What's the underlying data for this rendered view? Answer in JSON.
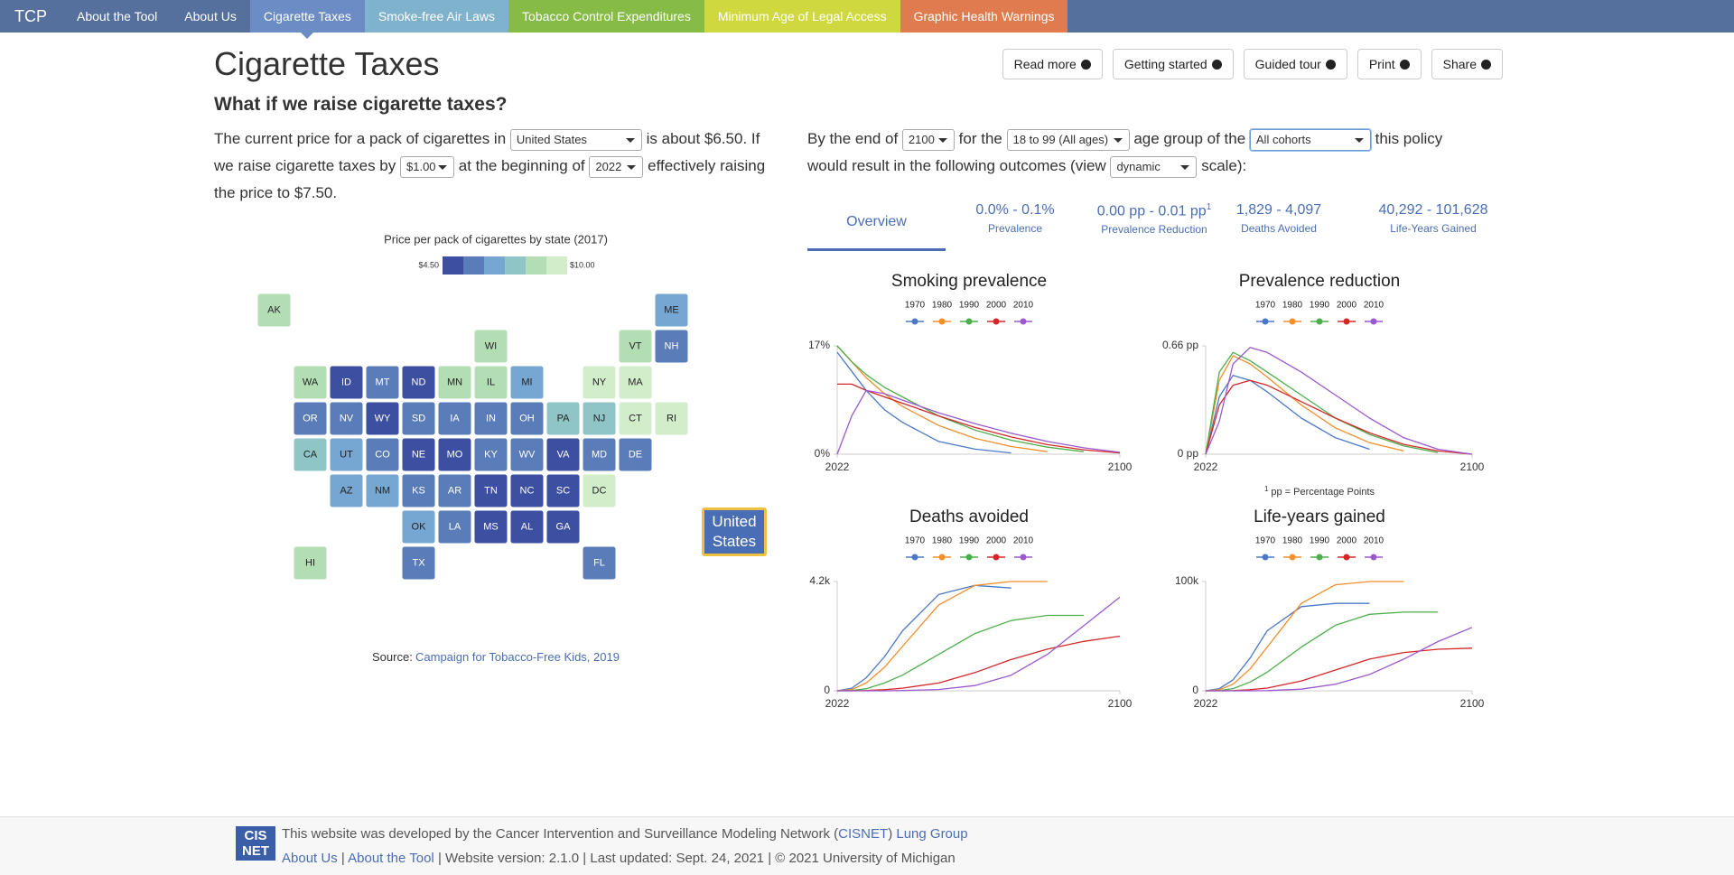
{
  "nav": {
    "brand": "TCP",
    "items": [
      {
        "label": "About the Tool",
        "color": "#56709e"
      },
      {
        "label": "About Us",
        "color": "#56709e"
      },
      {
        "label": "Cigarette Taxes",
        "color": "#6b8cc4"
      },
      {
        "label": "Smoke-free Air Laws",
        "color": "#7fb2cc"
      },
      {
        "label": "Tobacco Control Expenditures",
        "color": "#86bc45"
      },
      {
        "label": "Minimum Age of Legal Access",
        "color": "#cfd83e"
      },
      {
        "label": "Graphic Health Warnings",
        "color": "#e07b4f"
      }
    ]
  },
  "header": {
    "title": "Cigarette Taxes",
    "subtitle": "What if we raise cigarette taxes?",
    "buttons": [
      "Read more",
      "Getting started",
      "Guided tour",
      "Print",
      "Share"
    ]
  },
  "form": {
    "left": [
      "The current price for a pack of cigarettes in",
      "is about $6.50",
      ". If we raise cigarette taxes by",
      "at the beginning of",
      "effectively raising the price to $7.50."
    ],
    "location": "United States",
    "tax": "$1.00",
    "start_year": "2022",
    "right": [
      "By the end of",
      "for the",
      "age group of the",
      "this policy would result in the following outcomes (view",
      "scale):"
    ],
    "end_year": "2100",
    "age_group": "18 to 99 (All ages)",
    "cohorts": "All cohorts",
    "scale": "dynamic"
  },
  "outcomes": {
    "active": "Overview",
    "tabs": [
      {
        "value": "0.0% - 0.1%",
        "label": "Prevalence"
      },
      {
        "value": "0.00 pp - 0.01 pp",
        "sup": "1",
        "label": "Prevalence Reduction"
      },
      {
        "value": "1,829 - 4,097",
        "label": "Deaths Avoided"
      },
      {
        "value": "40,292 - 101,628",
        "label": "Life-Years Gained"
      }
    ],
    "footnote": {
      "marker": "1",
      "text": "pp = Percentage Points"
    }
  },
  "chart_data": [
    {
      "type": "line",
      "title": "Smoking prevalence",
      "x": [
        2022,
        2026,
        2030,
        2035,
        2040,
        2050,
        2060,
        2070,
        2080,
        2090,
        2100
      ],
      "xlim": [
        2022,
        2100
      ],
      "xticks": [
        2022,
        2100
      ],
      "ylim": [
        0,
        17
      ],
      "yticks": [
        {
          "value": 0,
          "label": "0%"
        },
        {
          "value": 17,
          "label": "17%"
        }
      ],
      "series": [
        {
          "name": "1970",
          "color": "#4a78c8",
          "values": [
            16,
            13,
            10,
            7,
            5,
            2,
            0.8,
            0.2,
            null,
            null,
            null
          ]
        },
        {
          "name": "1980",
          "color": "#f28e2b",
          "values": [
            17,
            14.5,
            12,
            9.5,
            7.5,
            4.5,
            2.5,
            1.2,
            0.4,
            null,
            null
          ]
        },
        {
          "name": "1990",
          "color": "#4daf4a",
          "values": [
            17,
            14.5,
            12.5,
            10.5,
            9,
            6,
            3.8,
            2.2,
            1.1,
            0.4,
            null
          ]
        },
        {
          "name": "2000",
          "color": "#d62728",
          "values": [
            11,
            11,
            10,
            9,
            8,
            6,
            4.2,
            2.7,
            1.5,
            0.7,
            0.2
          ]
        },
        {
          "name": "2010",
          "color": "#9b59d0",
          "values": [
            0,
            6,
            10,
            9.5,
            8.5,
            6.5,
            4.8,
            3.3,
            2,
            1,
            0.3
          ]
        }
      ]
    },
    {
      "type": "line",
      "title": "Prevalence reduction",
      "x": [
        2022,
        2026,
        2030,
        2035,
        2040,
        2050,
        2060,
        2070,
        2080,
        2090,
        2100
      ],
      "xlim": [
        2022,
        2100
      ],
      "xticks": [
        2022,
        2100
      ],
      "ylim": [
        0,
        0.66
      ],
      "yticks": [
        {
          "value": 0,
          "label": "0 pp"
        },
        {
          "value": 0.66,
          "label": "0.66 pp"
        }
      ],
      "series": [
        {
          "name": "1970",
          "color": "#4a78c8",
          "values": [
            0,
            0.35,
            0.48,
            0.45,
            0.38,
            0.22,
            0.1,
            0.03,
            null,
            null,
            null
          ]
        },
        {
          "name": "1980",
          "color": "#f28e2b",
          "values": [
            0,
            0.45,
            0.6,
            0.55,
            0.47,
            0.3,
            0.16,
            0.07,
            0.02,
            null,
            null
          ]
        },
        {
          "name": "1990",
          "color": "#4daf4a",
          "values": [
            0,
            0.5,
            0.62,
            0.57,
            0.5,
            0.36,
            0.22,
            0.12,
            0.05,
            0.01,
            null
          ]
        },
        {
          "name": "2000",
          "color": "#d62728",
          "values": [
            0,
            0.3,
            0.42,
            0.45,
            0.42,
            0.32,
            0.22,
            0.13,
            0.06,
            0.02,
            0
          ]
        },
        {
          "name": "2010",
          "color": "#9b59d0",
          "values": [
            0,
            0.2,
            0.55,
            0.65,
            0.62,
            0.5,
            0.36,
            0.22,
            0.1,
            0.03,
            0
          ]
        }
      ]
    },
    {
      "type": "line",
      "title": "Deaths avoided",
      "x": [
        2022,
        2026,
        2030,
        2035,
        2040,
        2050,
        2060,
        2070,
        2080,
        2090,
        2100
      ],
      "xlim": [
        2022,
        2100
      ],
      "xticks": [
        2022,
        2100
      ],
      "ylim": [
        0,
        4200
      ],
      "yticks": [
        0,
        {
          "value": 4200,
          "label": "4.2k"
        }
      ],
      "series": [
        {
          "name": "1970",
          "color": "#4a78c8",
          "values": [
            0,
            100,
            500,
            1300,
            2300,
            3700,
            4050,
            3950,
            null,
            null,
            null
          ]
        },
        {
          "name": "1980",
          "color": "#f28e2b",
          "values": [
            0,
            50,
            300,
            900,
            1700,
            3300,
            4050,
            4200,
            4200,
            null,
            null
          ]
        },
        {
          "name": "1990",
          "color": "#4daf4a",
          "values": [
            0,
            10,
            80,
            300,
            600,
            1400,
            2200,
            2700,
            2900,
            2900,
            null
          ]
        },
        {
          "name": "2000",
          "color": "#d62728",
          "values": [
            0,
            0,
            10,
            40,
            100,
            300,
            700,
            1200,
            1600,
            1900,
            2100
          ]
        },
        {
          "name": "2010",
          "color": "#9b59d0",
          "values": [
            0,
            0,
            0,
            0,
            10,
            50,
            200,
            600,
            1400,
            2500,
            3600
          ]
        }
      ]
    },
    {
      "type": "line",
      "title": "Life-years gained",
      "x": [
        2022,
        2026,
        2030,
        2035,
        2040,
        2050,
        2060,
        2070,
        2080,
        2090,
        2100
      ],
      "xlim": [
        2022,
        2100
      ],
      "xticks": [
        2022,
        2100
      ],
      "ylim": [
        0,
        100000
      ],
      "yticks": [
        0,
        {
          "value": 100000,
          "label": "100k"
        }
      ],
      "series": [
        {
          "name": "1970",
          "color": "#4a78c8",
          "values": [
            0,
            2000,
            10000,
            30000,
            55000,
            77000,
            80000,
            80000,
            null,
            null,
            null
          ]
        },
        {
          "name": "1980",
          "color": "#f28e2b",
          "values": [
            0,
            1000,
            6000,
            20000,
            40000,
            80000,
            97000,
            100000,
            100000,
            null,
            null
          ]
        },
        {
          "name": "1990",
          "color": "#4daf4a",
          "values": [
            0,
            200,
            2000,
            8000,
            17000,
            40000,
            60000,
            70000,
            72000,
            72000,
            null
          ]
        },
        {
          "name": "2000",
          "color": "#d62728",
          "values": [
            0,
            0,
            200,
            1000,
            2500,
            9000,
            19000,
            29000,
            35000,
            38000,
            39000
          ]
        },
        {
          "name": "2010",
          "color": "#9b59d0",
          "values": [
            0,
            0,
            0,
            0,
            200,
            1500,
            6000,
            15000,
            29000,
            45000,
            58000
          ]
        }
      ]
    }
  ],
  "map": {
    "title": "Price per pack of cigarettes by state (2017)",
    "legend_min": "$4.50",
    "legend_max": "$10.00",
    "legend_colors": [
      "#3c4fa1",
      "#5a7dba",
      "#76a6d2",
      "#8fc5c7",
      "#b3deb4",
      "#d2edc9"
    ],
    "selected": "United States",
    "source_label": "Source:",
    "source_link": "Campaign for Tobacco-Free Kids, 2019",
    "states": [
      {
        "label": "AK",
        "color": "#b3deb4"
      },
      {
        "label": "ME",
        "color": "#76a6d2"
      },
      {
        "label": "WI",
        "color": "#b3deb4"
      },
      {
        "label": "VT",
        "color": "#b3deb4"
      },
      {
        "label": "NH",
        "color": "#5a7dba"
      },
      {
        "label": "WA",
        "color": "#b3deb4"
      },
      {
        "label": "ID",
        "color": "#3c4fa1"
      },
      {
        "label": "MT",
        "color": "#5a7dba"
      },
      {
        "label": "ND",
        "color": "#3c4fa1"
      },
      {
        "label": "MN",
        "color": "#b3deb4"
      },
      {
        "label": "IL",
        "color": "#b3deb4"
      },
      {
        "label": "MI",
        "color": "#76a6d2"
      },
      {
        "label": "NY",
        "color": "#d2edc9"
      },
      {
        "label": "MA",
        "color": "#d2edc9"
      },
      {
        "label": "OR",
        "color": "#5a7dba"
      },
      {
        "label": "NV",
        "color": "#5a7dba"
      },
      {
        "label": "WY",
        "color": "#3c4fa1"
      },
      {
        "label": "SD",
        "color": "#5a7dba"
      },
      {
        "label": "IA",
        "color": "#5a7dba"
      },
      {
        "label": "IN",
        "color": "#5a7dba"
      },
      {
        "label": "OH",
        "color": "#5a7dba"
      },
      {
        "label": "PA",
        "color": "#8fc5c7"
      },
      {
        "label": "NJ",
        "color": "#8fc5c7"
      },
      {
        "label": "CT",
        "color": "#d2edc9"
      },
      {
        "label": "RI",
        "color": "#d2edc9"
      },
      {
        "label": "CA",
        "color": "#8fc5c7"
      },
      {
        "label": "UT",
        "color": "#76a6d2"
      },
      {
        "label": "CO",
        "color": "#5a7dba"
      },
      {
        "label": "NE",
        "color": "#3c4fa1"
      },
      {
        "label": "MO",
        "color": "#3c4fa1"
      },
      {
        "label": "KY",
        "color": "#5a7dba"
      },
      {
        "label": "WV",
        "color": "#5a7dba"
      },
      {
        "label": "VA",
        "color": "#3c4fa1"
      },
      {
        "label": "MD",
        "color": "#5a7dba"
      },
      {
        "label": "DE",
        "color": "#5a7dba"
      },
      {
        "label": "AZ",
        "color": "#76a6d2"
      },
      {
        "label": "NM",
        "color": "#76a6d2"
      },
      {
        "label": "KS",
        "color": "#5a7dba"
      },
      {
        "label": "AR",
        "color": "#5a7dba"
      },
      {
        "label": "TN",
        "color": "#3c4fa1"
      },
      {
        "label": "NC",
        "color": "#3c4fa1"
      },
      {
        "label": "SC",
        "color": "#3c4fa1"
      },
      {
        "label": "DC",
        "color": "#d2edc9"
      },
      {
        "label": "OK",
        "color": "#76a6d2"
      },
      {
        "label": "LA",
        "color": "#5a7dba"
      },
      {
        "label": "MS",
        "color": "#3c4fa1"
      },
      {
        "label": "AL",
        "color": "#3c4fa1"
      },
      {
        "label": "GA",
        "color": "#3c4fa1"
      },
      {
        "label": "HI",
        "color": "#b3deb4"
      },
      {
        "label": "TX",
        "color": "#5a7dba"
      },
      {
        "label": "FL",
        "color": "#5a7dba"
      }
    ]
  },
  "footer": {
    "logo": [
      "CIS",
      "NET"
    ],
    "line1": [
      "This website was developed by the Cancer Intervention and Surveillance Modeling Network (",
      "CISNET",
      ")",
      "Lung Group"
    ],
    "links": [
      "About Us",
      "About the Tool"
    ],
    "separator": "|",
    "meta": "| Website version: 2.1.0 | Last updated: Sept. 24, 2021 | © 2021 University of Michigan"
  }
}
